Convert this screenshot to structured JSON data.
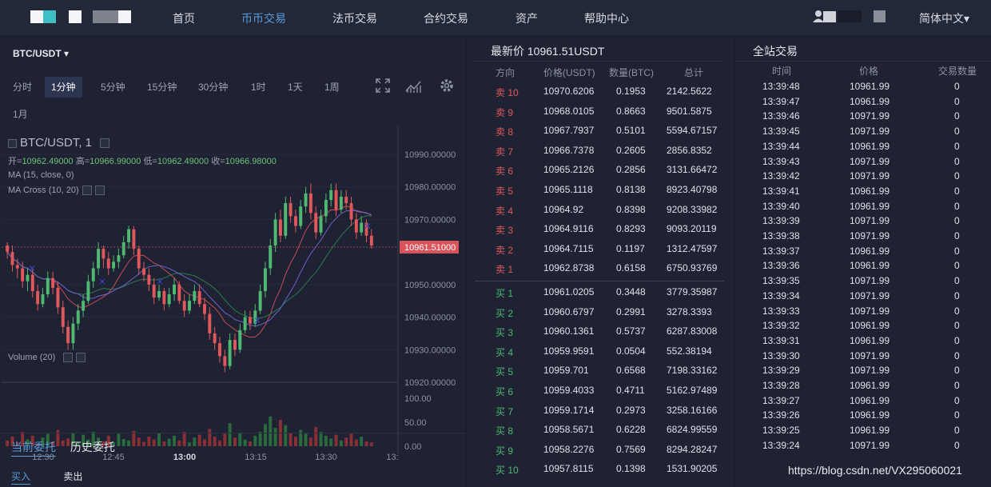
{
  "nav": {
    "items": [
      "首页",
      "币币交易",
      "法币交易",
      "合约交易",
      "资产",
      "帮助中心"
    ],
    "active_index": 1,
    "language": "简体中文▾"
  },
  "chart_panel": {
    "pair": "BTC/USDT ▾",
    "intervals": [
      "分时",
      "1分钟",
      "5分钟",
      "15分钟",
      "30分钟",
      "1时",
      "1天",
      "1周",
      "1月"
    ],
    "active_interval": "1分钟",
    "title": "BTC/USDT, 1",
    "ohlc_open_label": "开=",
    "ohlc_open": "10962.49000",
    "ohlc_high_label": "高=",
    "ohlc_high": "10966.99000",
    "ohlc_low_label": "低=",
    "ohlc_low": "10962.49000",
    "ohlc_close_label": "收=",
    "ohlc_close": "10966.98000",
    "ma_label": "MA (15, close, 0)",
    "macross_label": "MA Cross (10, 20)",
    "volume_label": "Volume (20)",
    "price_ticks": [
      "10990.00000",
      "10980.00000",
      "10970.00000",
      "10961.51000",
      "10950.00000",
      "10940.00000",
      "10930.00000",
      "10920.00000"
    ],
    "current_price": "10961.51000",
    "volume_ticks": [
      "100.00",
      "50.00",
      "0.00"
    ],
    "time_ticks": [
      "12:30",
      "12:45",
      "13:00",
      "13:15",
      "13:30",
      "13:"
    ]
  },
  "chart_data": {
    "type": "candlestick",
    "ylim": [
      10920,
      10990
    ],
    "ohlc": [
      [
        10962,
        10960,
        10963,
        10958
      ],
      [
        10960,
        10956,
        10962,
        10954
      ],
      [
        10956,
        10955,
        10958,
        10952
      ],
      [
        10955,
        10951,
        10957,
        10949
      ],
      [
        10951,
        10953,
        10955,
        10948
      ],
      [
        10953,
        10948,
        10955,
        10946
      ],
      [
        10948,
        10944,
        10950,
        10942
      ],
      [
        10944,
        10947,
        10949,
        10943
      ],
      [
        10947,
        10952,
        10954,
        10946
      ],
      [
        10952,
        10949,
        10954,
        10947
      ],
      [
        10949,
        10943,
        10951,
        10941
      ],
      [
        10943,
        10937,
        10945,
        10935
      ],
      [
        10937,
        10932,
        10939,
        10930
      ],
      [
        10932,
        10938,
        10940,
        10930
      ],
      [
        10938,
        10942,
        10944,
        10936
      ],
      [
        10942,
        10945,
        10947,
        10940
      ],
      [
        10945,
        10951,
        10953,
        10944
      ],
      [
        10951,
        10955,
        10957,
        10949
      ],
      [
        10955,
        10961,
        10963,
        10953
      ],
      [
        10961,
        10958,
        10962,
        10955
      ],
      [
        10958,
        10955,
        10960,
        10953
      ],
      [
        10955,
        10957,
        10959,
        10954
      ],
      [
        10957,
        10959,
        10961,
        10955
      ],
      [
        10959,
        10963,
        10965,
        10958
      ],
      [
        10963,
        10967,
        10968,
        10961
      ],
      [
        10967,
        10961,
        10968,
        10959
      ],
      [
        10961,
        10955,
        10962,
        10953
      ],
      [
        10955,
        10953,
        10957,
        10951
      ],
      [
        10953,
        10950,
        10955,
        10948
      ],
      [
        10950,
        10946,
        10952,
        10944
      ],
      [
        10946,
        10948,
        10950,
        10945
      ],
      [
        10948,
        10944,
        10949,
        10942
      ],
      [
        10944,
        10947,
        10949,
        10943
      ],
      [
        10947,
        10950,
        10952,
        10945
      ],
      [
        10950,
        10945,
        10951,
        10944
      ],
      [
        10945,
        10942,
        10947,
        10940
      ],
      [
        10942,
        10945,
        10947,
        10941
      ],
      [
        10945,
        10948,
        10950,
        10944
      ],
      [
        10948,
        10944,
        10950,
        10943
      ],
      [
        10944,
        10941,
        10946,
        10939
      ],
      [
        10941,
        10935,
        10943,
        10933
      ],
      [
        10935,
        10932,
        10937,
        10930
      ],
      [
        10932,
        10928,
        10934,
        10926
      ],
      [
        10928,
        10925,
        10930,
        10923
      ],
      [
        10925,
        10933,
        10935,
        10924
      ],
      [
        10933,
        10930,
        10935,
        10928
      ],
      [
        10930,
        10936,
        10938,
        10929
      ],
      [
        10936,
        10940,
        10942,
        10935
      ],
      [
        10940,
        10938,
        10942,
        10936
      ],
      [
        10938,
        10942,
        10944,
        10937
      ],
      [
        10942,
        10948,
        10950,
        10941
      ],
      [
        10948,
        10955,
        10957,
        10946
      ],
      [
        10955,
        10962,
        10964,
        10953
      ],
      [
        10962,
        10970,
        10972,
        10960
      ],
      [
        10970,
        10965,
        10973,
        10963
      ],
      [
        10965,
        10975,
        10977,
        10964
      ],
      [
        10975,
        10971,
        10977,
        10969
      ],
      [
        10971,
        10968,
        10973,
        10966
      ],
      [
        10968,
        10974,
        10976,
        10967
      ],
      [
        10974,
        10978,
        10980,
        10972
      ],
      [
        10978,
        10972,
        10981,
        10970
      ],
      [
        10972,
        10966,
        10974,
        10964
      ],
      [
        10966,
        10971,
        10973,
        10965
      ],
      [
        10971,
        10976,
        10978,
        10969
      ],
      [
        10976,
        10979,
        10981,
        10974
      ],
      [
        10979,
        10973,
        10981,
        10971
      ],
      [
        10973,
        10977,
        10979,
        10972
      ],
      [
        10977,
        10975,
        10979,
        10973
      ],
      [
        10975,
        10970,
        10977,
        10968
      ],
      [
        10970,
        10966,
        10972,
        10964
      ],
      [
        10966,
        10969,
        10971,
        10965
      ],
      [
        10969,
        10965,
        10970,
        10963
      ],
      [
        10965,
        10962,
        10967,
        10961
      ]
    ],
    "volumes": [
      12,
      20,
      8,
      30,
      14,
      22,
      6,
      18,
      26,
      10,
      34,
      12,
      16,
      28,
      9,
      24,
      14,
      30,
      18,
      10,
      22,
      8,
      26,
      15,
      12,
      32,
      18,
      9,
      20,
      14,
      28,
      10,
      16,
      22,
      12,
      30,
      8,
      18,
      24,
      14,
      36,
      20,
      12,
      26,
      48,
      18,
      28,
      14,
      10,
      22,
      30,
      46,
      62,
      38,
      55,
      44,
      28,
      20,
      34,
      26,
      18,
      40,
      30,
      22,
      16,
      24,
      12,
      18,
      26,
      14,
      20,
      10,
      8
    ],
    "volume_ylim": [
      0,
      100
    ]
  },
  "bottom_tabs": {
    "current": "当前委托",
    "history": "历史委托",
    "buy": "买入",
    "sell": "卖出"
  },
  "orderbook": {
    "latest_label": "最新价 10961.51USDT",
    "headers": [
      "方向",
      "价格(USDT)",
      "数量(BTC)",
      "总计"
    ],
    "asks": [
      [
        "卖 10",
        "10970.6206",
        "0.1953",
        "2142.5622"
      ],
      [
        "卖 9",
        "10968.0105",
        "0.8663",
        "9501.5875"
      ],
      [
        "卖 8",
        "10967.7937",
        "0.5101",
        "5594.67157"
      ],
      [
        "卖 7",
        "10966.7378",
        "0.2605",
        "2856.8352"
      ],
      [
        "卖 6",
        "10965.2126",
        "0.2856",
        "3131.66472"
      ],
      [
        "卖 5",
        "10965.1118",
        "0.8138",
        "8923.40798"
      ],
      [
        "卖 4",
        "10964.92",
        "0.8398",
        "9208.33982"
      ],
      [
        "卖 3",
        "10964.9116",
        "0.8293",
        "9093.20119"
      ],
      [
        "卖 2",
        "10964.7115",
        "0.1197",
        "1312.47597"
      ],
      [
        "卖 1",
        "10962.8738",
        "0.6158",
        "6750.93769"
      ]
    ],
    "bids": [
      [
        "买 1",
        "10961.0205",
        "0.3448",
        "3779.35987"
      ],
      [
        "买 2",
        "10960.6797",
        "0.2991",
        "3278.3393"
      ],
      [
        "买 3",
        "10960.1361",
        "0.5737",
        "6287.83008"
      ],
      [
        "买 4",
        "10959.9591",
        "0.0504",
        "552.38194"
      ],
      [
        "买 5",
        "10959.701",
        "0.6568",
        "7198.33162"
      ],
      [
        "买 6",
        "10959.4033",
        "0.4711",
        "5162.97489"
      ],
      [
        "买 7",
        "10959.1714",
        "0.2973",
        "3258.16166"
      ],
      [
        "买 8",
        "10958.5671",
        "0.6228",
        "6824.99559"
      ],
      [
        "买 9",
        "10958.2276",
        "0.7569",
        "8294.28247"
      ],
      [
        "买 10",
        "10957.8115",
        "0.1398",
        "1531.90205"
      ]
    ]
  },
  "trades": {
    "title": "全站交易",
    "headers": [
      "时间",
      "价格",
      "交易数量"
    ],
    "rows": [
      [
        "13:39:48",
        "10961.99",
        "0"
      ],
      [
        "13:39:47",
        "10961.99",
        "0"
      ],
      [
        "13:39:46",
        "10971.99",
        "0"
      ],
      [
        "13:39:45",
        "10971.99",
        "0"
      ],
      [
        "13:39:44",
        "10961.99",
        "0"
      ],
      [
        "13:39:43",
        "10971.99",
        "0"
      ],
      [
        "13:39:42",
        "10971.99",
        "0"
      ],
      [
        "13:39:41",
        "10961.99",
        "0"
      ],
      [
        "13:39:40",
        "10961.99",
        "0"
      ],
      [
        "13:39:39",
        "10971.99",
        "0"
      ],
      [
        "13:39:38",
        "10971.99",
        "0"
      ],
      [
        "13:39:37",
        "10961.99",
        "0"
      ],
      [
        "13:39:36",
        "10961.99",
        "0"
      ],
      [
        "13:39:35",
        "10971.99",
        "0"
      ],
      [
        "13:39:34",
        "10971.99",
        "0"
      ],
      [
        "13:39:33",
        "10971.99",
        "0"
      ],
      [
        "13:39:32",
        "10961.99",
        "0"
      ],
      [
        "13:39:31",
        "10961.99",
        "0"
      ],
      [
        "13:39:30",
        "10971.99",
        "0"
      ],
      [
        "13:39:29",
        "10971.99",
        "0"
      ],
      [
        "13:39:28",
        "10961.99",
        "0"
      ],
      [
        "13:39:27",
        "10961.99",
        "0"
      ],
      [
        "13:39:26",
        "10961.99",
        "0"
      ],
      [
        "13:39:25",
        "10961.99",
        "0"
      ],
      [
        "13:39:24",
        "10971.99",
        "0"
      ]
    ]
  },
  "watermark": "https://blog.csdn.net/VX295060021",
  "colors": {
    "up": "#4fb971",
    "down": "#e0585b",
    "accent": "#5a9bd8"
  }
}
